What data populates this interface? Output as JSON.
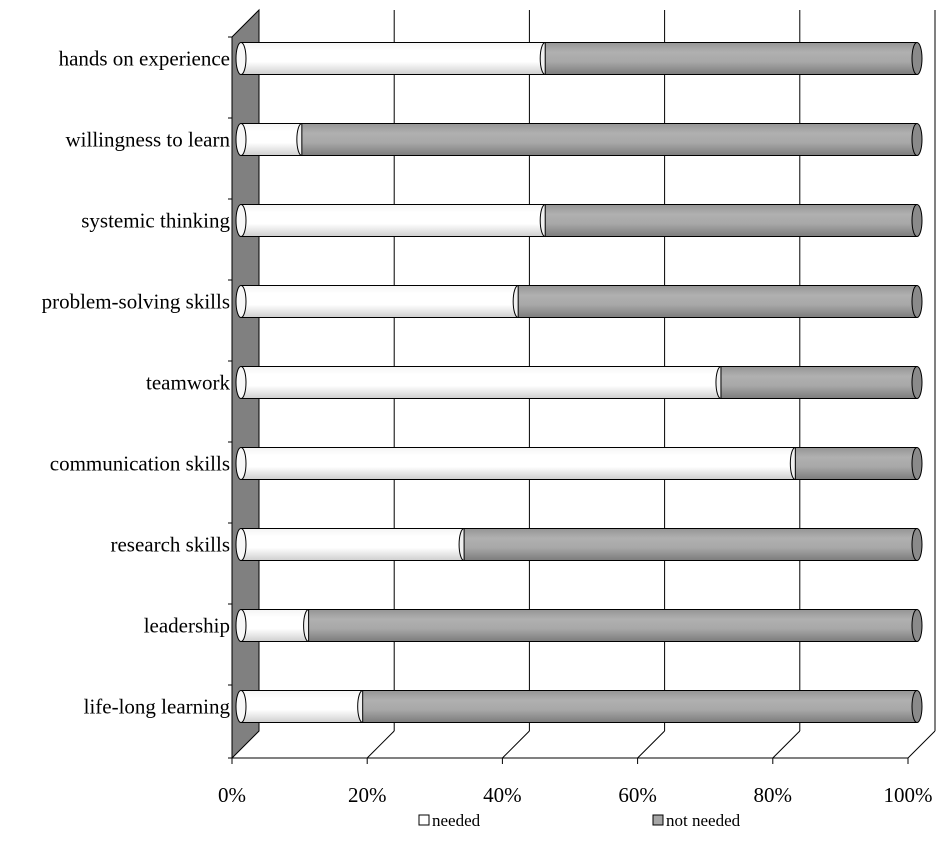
{
  "chart_data": {
    "type": "bar",
    "stacked": "percent",
    "orientation": "horizontal",
    "style": "3d-cylinder",
    "title": "",
    "xlabel": "",
    "ylabel": "",
    "xlim": [
      0,
      100
    ],
    "x_ticks": [
      "0%",
      "20%",
      "40%",
      "60%",
      "80%",
      "100%"
    ],
    "grid": "vertical",
    "legend_position": "bottom",
    "categories": [
      "hands on experience",
      "willingness to learn",
      "systemic thinking",
      "problem-solving skills",
      "teamwork",
      "communication skills",
      "research skills",
      "leadership",
      "life-long learning"
    ],
    "series": [
      {
        "name": "needed",
        "color": "#ffffff",
        "values": [
          45,
          9,
          45,
          41,
          71,
          82,
          33,
          10,
          18
        ]
      },
      {
        "name": "not needed",
        "color": "#a6a6a6",
        "values": [
          55,
          91,
          55,
          59,
          29,
          18,
          67,
          90,
          82
        ]
      }
    ],
    "legend": [
      "needed",
      "not needed"
    ]
  }
}
